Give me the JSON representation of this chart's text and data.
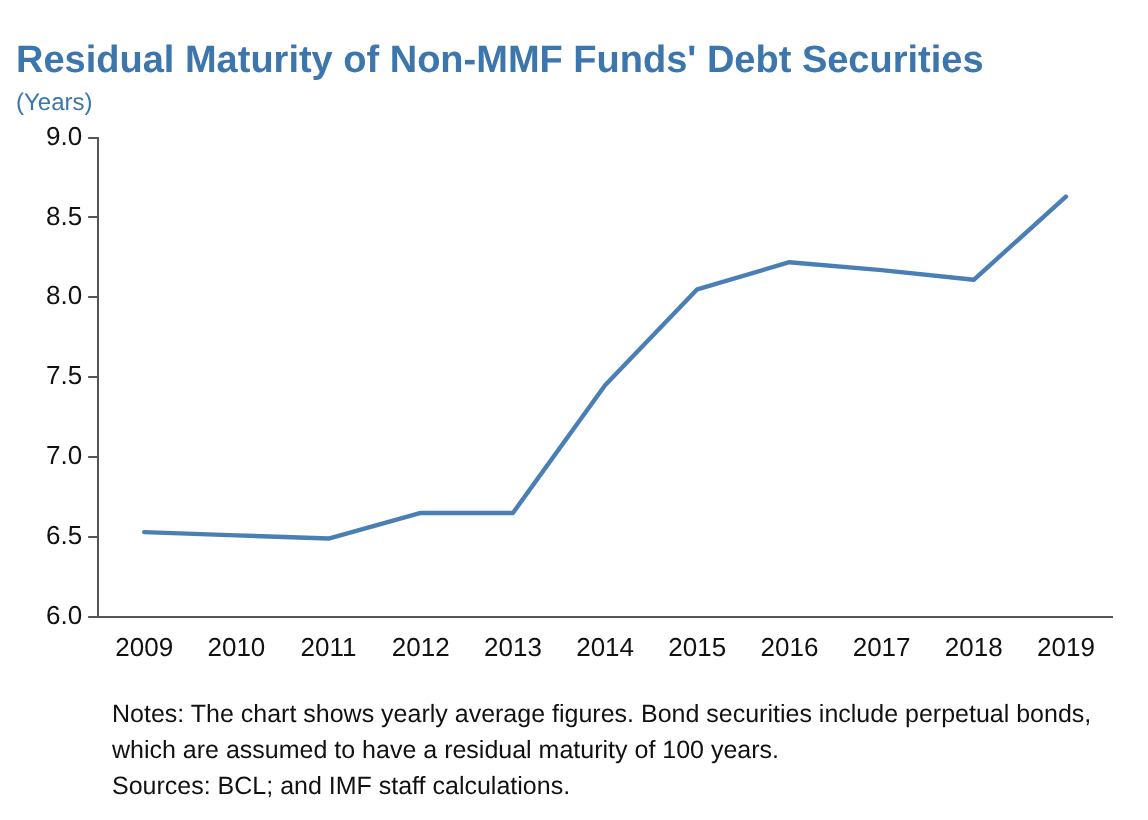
{
  "chart_data": {
    "type": "line",
    "title": "Residual Maturity of Non-MMF Funds' Debt Securities",
    "ylabel": "(Years)",
    "categories": [
      "2009",
      "2010",
      "2011",
      "2012",
      "2013",
      "2014",
      "2015",
      "2016",
      "2017",
      "2018",
      "2019"
    ],
    "series": [
      {
        "color": "#4a7fb5",
        "values": [
          6.53,
          6.51,
          6.49,
          6.65,
          6.65,
          7.45,
          8.05,
          8.22,
          8.17,
          8.11,
          8.63
        ]
      }
    ],
    "ylim": [
      6.0,
      9.0
    ],
    "yticks": [
      {
        "value": 6,
        "label": "6.0"
      },
      {
        "value": 6.5,
        "label": "6.5"
      },
      {
        "value": 7,
        "label": "7.0"
      },
      {
        "value": 7.5,
        "label": "7.5"
      },
      {
        "value": 8,
        "label": "8.0"
      },
      {
        "value": 8.5,
        "label": "8.5"
      },
      {
        "value": 9,
        "label": "9.0"
      }
    ],
    "grid": false,
    "legend": false,
    "marker": "none",
    "line_style": "solid",
    "annotations": [
      "Notes: The chart shows yearly average figures. Bond securities include perpetual bonds, which are assumed to have a residual maturity of 100 years.",
      "Sources: BCL; and IMF staff calculations."
    ]
  }
}
